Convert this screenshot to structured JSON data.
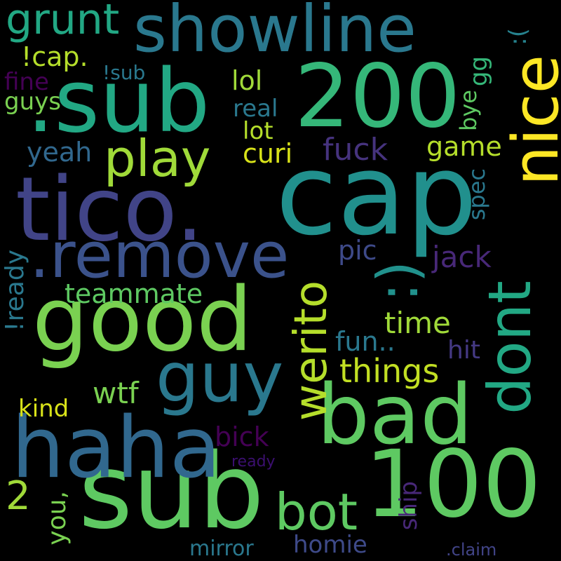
{
  "words": [
    {
      "text": "cap",
      "color": "#21908d"
    },
    {
      "text": "sub",
      "color": "#5ec962"
    },
    {
      "text": ".sub",
      "color": "#22a884"
    },
    {
      "text": "good",
      "color": "#7ad151"
    },
    {
      "text": "tico.",
      "color": "#414487"
    },
    {
      "text": "haha",
      "color": "#31688e"
    },
    {
      "text": "showline",
      "color": "#2a788e"
    },
    {
      "text": "200",
      "color": "#35b779"
    },
    {
      "text": "100",
      "color": "#5ec962"
    },
    {
      "text": "bad",
      "color": "#5ec962"
    },
    {
      "text": "nice",
      "color": "#fde725"
    },
    {
      "text": ".remove",
      "color": "#3b528b"
    },
    {
      "text": "guy",
      "color": "#2a788e"
    },
    {
      "text": "dont",
      "color": "#22a884"
    },
    {
      "text": ":)",
      "color": "#21918c"
    },
    {
      "text": "werito",
      "color": "#b5de2b"
    },
    {
      "text": "play",
      "color": "#a0da39"
    },
    {
      "text": "bot",
      "color": "#5ec962"
    },
    {
      "text": "grunt",
      "color": "#22a884"
    },
    {
      "text": "!cap.",
      "color": "#b5de2b"
    },
    {
      "text": "things",
      "color": "#c2df23"
    },
    {
      "text": "!sub",
      "color": "#2a788e"
    },
    {
      "text": "lol",
      "color": "#a0da39"
    },
    {
      "text": "real",
      "color": "#2a788e"
    },
    {
      "text": "lot",
      "color": "#b5de2b"
    },
    {
      "text": "curi",
      "color": "#d8e219"
    },
    {
      "text": "fuck",
      "color": "#46337e"
    },
    {
      "text": "game",
      "color": "#b5de2b"
    },
    {
      "text": "yeah",
      "color": "#31688e"
    },
    {
      "text": "guys",
      "color": "#7ad151"
    },
    {
      "text": "fine",
      "color": "#440154"
    },
    {
      "text": ":(",
      "color": "#26828e"
    },
    {
      "text": "gg",
      "color": "#35b779"
    },
    {
      "text": "bye",
      "color": "#5ec962"
    },
    {
      "text": "spec",
      "color": "#2a788e"
    },
    {
      "text": "jack",
      "color": "#482878"
    },
    {
      "text": "pic",
      "color": "#3e4a89"
    },
    {
      "text": "teammate",
      "color": "#5ec962"
    },
    {
      "text": "time",
      "color": "#a0da39"
    },
    {
      "text": "fun..",
      "color": "#2a788e"
    },
    {
      "text": "hit",
      "color": "#443983"
    },
    {
      "text": "!ready",
      "color": "#2a788e"
    },
    {
      "text": "wtf",
      "color": "#7ad151"
    },
    {
      "text": "kind",
      "color": "#d8e219"
    },
    {
      "text": "bick",
      "color": "#440154"
    },
    {
      "text": "ready",
      "color": "#3b0f70"
    },
    {
      "text": "2",
      "color": "#a0da39"
    },
    {
      "text": "you,",
      "color": "#7ad151"
    },
    {
      "text": "ship",
      "color": "#482878"
    },
    {
      "text": "mirror",
      "color": "#2a788e"
    },
    {
      "text": "homie",
      "color": "#3e4a89"
    },
    {
      "text": ".claim",
      "color": "#414487"
    }
  ]
}
